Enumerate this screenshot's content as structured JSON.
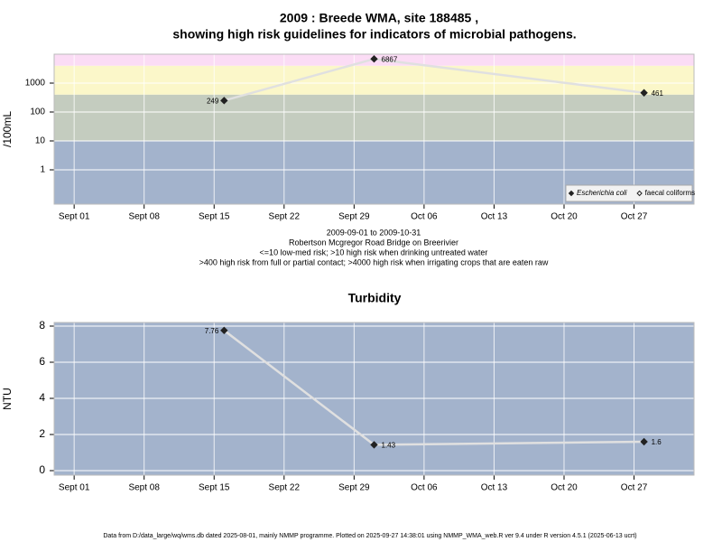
{
  "chart_data": [
    {
      "type": "line",
      "title": "2009 : Breede WMA, site 188485 ,",
      "subtitle": "showing high risk guidelines for indicators of microbial pathogens.",
      "y_label": "/100mL",
      "log_scale": true,
      "x": [
        "2009-09-16",
        "2009-10-01",
        "2009-10-28"
      ],
      "series": [
        {
          "name": "Escherichia coli",
          "color": "#222222",
          "line_color": "#e0e0e0",
          "values": [
            249,
            6867,
            461
          ],
          "marker": "filled"
        },
        {
          "name": "faecal coliforms",
          "color": "#222222",
          "line_color": "#e0e0e0",
          "values": [
            null,
            null,
            null
          ],
          "marker": "open"
        }
      ],
      "xlim": [
        "2009-08-30",
        "2009-11-02"
      ],
      "xticks": [
        {
          "value": "2009-09-01",
          "label": "Sept 01"
        },
        {
          "value": "2009-09-08",
          "label": "Sept 08"
        },
        {
          "value": "2009-09-15",
          "label": "Sept 15"
        },
        {
          "value": "2009-09-22",
          "label": "Sept 22"
        },
        {
          "value": "2009-09-29",
          "label": "Sept 29"
        },
        {
          "value": "2009-10-06",
          "label": "Oct 06"
        },
        {
          "value": "2009-10-13",
          "label": "Oct 13"
        },
        {
          "value": "2009-10-20",
          "label": "Oct 20"
        },
        {
          "value": "2009-10-27",
          "label": "Oct 27"
        }
      ],
      "ylim": [
        0.065,
        10000
      ],
      "yticks": [
        1,
        10,
        100,
        1000
      ],
      "thresholds": [
        10,
        400,
        4000
      ],
      "band_colors": [
        "#a3b3cc",
        "#c4ccbf",
        "#fbf7c9",
        "#fbdcf5"
      ],
      "grid": true,
      "legend": "bottom-right",
      "notes": [
        "2009-09-01 to 2009-10-31",
        "Robertson Mcgregor Road Bridge on Breerivier",
        "<=10 low-med risk; >10 high risk when drinking untreated water",
        ">400 high risk from full or partial contact; >4000 high risk when irrigating crops that are eaten raw"
      ]
    },
    {
      "type": "line",
      "title": "Turbidity",
      "y_label": "NTU",
      "log_scale": false,
      "x": [
        "2009-09-16",
        "2009-10-01",
        "2009-10-28"
      ],
      "series": [
        {
          "name": "Turbidity",
          "color": "#222222",
          "line_color": "#e0e0e0",
          "values": [
            7.76,
            1.43,
            1.6
          ],
          "marker": "filled"
        }
      ],
      "xlim": [
        "2009-08-30",
        "2009-11-02"
      ],
      "xticks": [
        {
          "value": "2009-09-01",
          "label": "Sept 01"
        },
        {
          "value": "2009-09-08",
          "label": "Sept 08"
        },
        {
          "value": "2009-09-15",
          "label": "Sept 15"
        },
        {
          "value": "2009-09-22",
          "label": "Sept 22"
        },
        {
          "value": "2009-09-29",
          "label": "Sept 29"
        },
        {
          "value": "2009-10-06",
          "label": "Oct 06"
        },
        {
          "value": "2009-10-13",
          "label": "Oct 13"
        },
        {
          "value": "2009-10-20",
          "label": "Oct 20"
        },
        {
          "value": "2009-10-27",
          "label": "Oct 27"
        }
      ],
      "ylim": [
        -0.25,
        8.2
      ],
      "yticks": [
        0,
        2,
        4,
        6,
        8
      ],
      "band_colors": [
        "#a3b3cc"
      ],
      "grid": true
    }
  ],
  "footer": "Data from D:/data_large/wq/wms.db dated 2025-08-01, mainly NMMP programme. Plotted on 2025-09-27 14:38:01 using NMMP_WMA_web.R ver 9.4 under R version 4.5.1 (2025-06-13 ucrt)"
}
